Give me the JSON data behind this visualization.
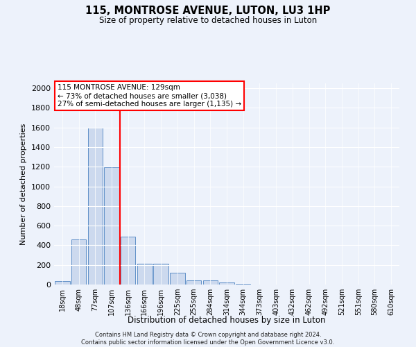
{
  "title": "115, MONTROSE AVENUE, LUTON, LU3 1HP",
  "subtitle": "Size of property relative to detached houses in Luton",
  "xlabel": "Distribution of detached houses by size in Luton",
  "ylabel": "Number of detached properties",
  "categories": [
    "18sqm",
    "48sqm",
    "77sqm",
    "107sqm",
    "136sqm",
    "166sqm",
    "196sqm",
    "225sqm",
    "255sqm",
    "284sqm",
    "314sqm",
    "344sqm",
    "373sqm",
    "403sqm",
    "432sqm",
    "462sqm",
    "492sqm",
    "521sqm",
    "551sqm",
    "580sqm",
    "610sqm"
  ],
  "values": [
    35,
    460,
    1600,
    1195,
    490,
    210,
    210,
    120,
    40,
    40,
    20,
    10,
    0,
    0,
    0,
    0,
    0,
    0,
    0,
    0,
    0
  ],
  "bar_color": "#ccd9ee",
  "bar_edge_color": "#6090c8",
  "vline_color": "red",
  "vline_x": 3.5,
  "annotation_text": "115 MONTROSE AVENUE: 129sqm\n← 73% of detached houses are smaller (3,038)\n27% of semi-detached houses are larger (1,135) →",
  "annotation_box_color": "red",
  "annotation_box_facecolor": "white",
  "ylim": [
    0,
    2050
  ],
  "yticks": [
    0,
    200,
    400,
    600,
    800,
    1000,
    1200,
    1400,
    1600,
    1800,
    2000
  ],
  "footer_text": "Contains HM Land Registry data © Crown copyright and database right 2024.\nContains public sector information licensed under the Open Government Licence v3.0.",
  "bg_color": "#edf2fb",
  "plot_bg_color": "#edf2fb",
  "grid_color": "white"
}
